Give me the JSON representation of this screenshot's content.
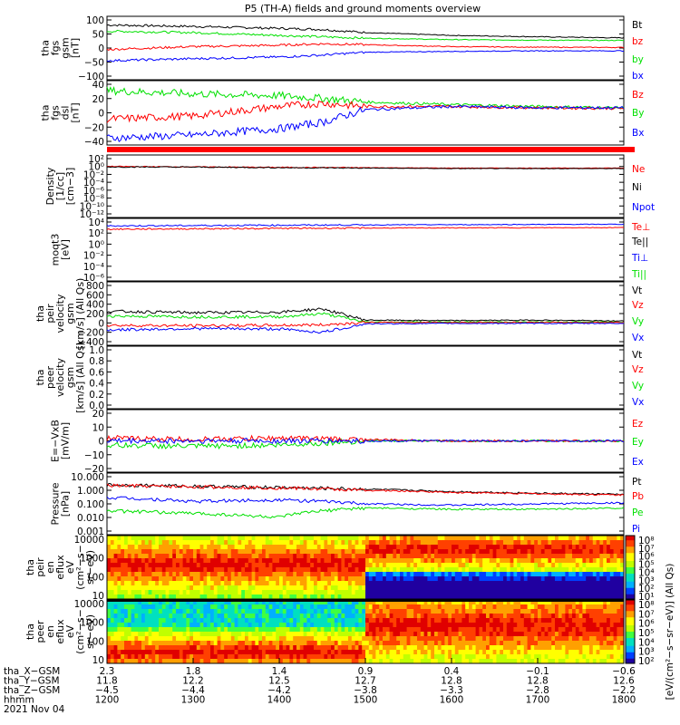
{
  "title": "P5 (TH-A) fields and ground moments overview",
  "colors": {
    "black": "#000000",
    "red": "#ff0000",
    "green": "#00e000",
    "blue": "#0000ff"
  },
  "chart_data": [
    {
      "type": "line",
      "panel": "fgs_gsm",
      "ylabel": [
        "tha",
        "fgs",
        "gsm",
        "[nT]"
      ],
      "yticks": [
        "100",
        "50",
        "0",
        "−50",
        "−100"
      ],
      "ylim": [
        -100,
        100
      ],
      "legend": [
        {
          "name": "Bt",
          "color": "black"
        },
        {
          "name": "bz",
          "color": "red"
        },
        {
          "name": "by",
          "color": "green"
        },
        {
          "name": "bx",
          "color": "blue"
        }
      ],
      "series": [
        {
          "name": "Bt",
          "color": "black",
          "x": [
            1200,
            1300,
            1400,
            1450,
            1500,
            1600,
            1700,
            1800
          ],
          "y": [
            82,
            77,
            70,
            66,
            55,
            45,
            40,
            36
          ]
        },
        {
          "name": "by",
          "color": "green",
          "x": [
            1200,
            1300,
            1400,
            1450,
            1500,
            1600,
            1700,
            1800
          ],
          "y": [
            60,
            55,
            45,
            40,
            35,
            30,
            28,
            27
          ]
        },
        {
          "name": "bz",
          "color": "red",
          "x": [
            1200,
            1300,
            1400,
            1450,
            1500,
            1600,
            1700,
            1800
          ],
          "y": [
            -5,
            5,
            10,
            15,
            12,
            5,
            3,
            2
          ]
        },
        {
          "name": "bx",
          "color": "blue",
          "x": [
            1200,
            1300,
            1400,
            1450,
            1500,
            1600,
            1700,
            1800
          ],
          "y": [
            -45,
            -38,
            -32,
            -25,
            -15,
            -12,
            -10,
            -10
          ]
        }
      ]
    },
    {
      "type": "line",
      "panel": "fgs_dsl",
      "ylabel": [
        "tha",
        "fgs",
        "dsl",
        "[nT]"
      ],
      "yticks": [
        "40",
        "20",
        "0",
        "−20",
        "−40"
      ],
      "ylim": [
        -50,
        40
      ],
      "legend": [
        {
          "name": "Bz",
          "color": "red"
        },
        {
          "name": "By",
          "color": "green"
        },
        {
          "name": "Bx",
          "color": "blue"
        }
      ],
      "series": [
        {
          "name": "By",
          "color": "green",
          "x": [
            1200,
            1300,
            1400,
            1450,
            1500,
            1600,
            1700,
            1800
          ],
          "y": [
            30,
            25,
            22,
            18,
            12,
            8,
            5,
            3
          ]
        },
        {
          "name": "Bz",
          "color": "red",
          "x": [
            1200,
            1300,
            1400,
            1450,
            1500,
            1600,
            1700,
            1800
          ],
          "y": [
            -15,
            -10,
            5,
            10,
            5,
            5,
            3,
            2
          ]
        },
        {
          "name": "Bx",
          "color": "blue",
          "x": [
            1200,
            1300,
            1400,
            1450,
            1500,
            1600,
            1700,
            1800
          ],
          "y": [
            -45,
            -40,
            -30,
            -20,
            0,
            5,
            3,
            3
          ]
        }
      ]
    },
    {
      "type": "line",
      "panel": "density",
      "yscale": "log",
      "ylabel": [
        "Density",
        "[1/cc]",
        "[cm−3]"
      ],
      "yticks": [
        "10²",
        "10⁰",
        "10⁻²",
        "10⁻⁴",
        "10⁻⁶",
        "10⁻⁸",
        "10⁻¹⁰",
        "10⁻¹²"
      ],
      "legend": [
        {
          "name": "Ne",
          "color": "red"
        },
        {
          "name": "Ni",
          "color": "black"
        },
        {
          "name": "Npot",
          "color": "blue"
        }
      ],
      "series": [
        {
          "name": "Ne",
          "color": "red",
          "x": [
            1200,
            1300,
            1400,
            1500,
            1600,
            1700,
            1800
          ],
          "y": [
            1,
            0.8,
            0.6,
            0.5,
            0.4,
            0.4,
            0.4
          ]
        },
        {
          "name": "Ni",
          "color": "black",
          "x": [
            1200,
            1300,
            1400,
            1500,
            1600,
            1700,
            1800
          ],
          "y": [
            0.8,
            0.7,
            0.5,
            0.4,
            0.3,
            0.3,
            0.3
          ]
        }
      ]
    },
    {
      "type": "line",
      "panel": "temperature",
      "yscale": "log",
      "ylabel": [
        "moqt3",
        "[eV]"
      ],
      "yticks": [
        "10⁴",
        "10²",
        "10⁰",
        "10⁻²",
        "10⁻⁴",
        "10⁻⁶"
      ],
      "legend": [
        {
          "name": "Te⊥",
          "color": "red"
        },
        {
          "name": "Te||",
          "color": "black"
        },
        {
          "name": "Ti⊥",
          "color": "blue"
        },
        {
          "name": "Ti||",
          "color": "green"
        }
      ],
      "series": [
        {
          "name": "Ti⊥",
          "color": "blue",
          "x": [
            1200,
            1500,
            1800
          ],
          "y": [
            2000,
            3000,
            4000
          ]
        },
        {
          "name": "Te⊥",
          "color": "red",
          "x": [
            1200,
            1500,
            1800
          ],
          "y": [
            500,
            800,
            1000
          ]
        }
      ]
    },
    {
      "type": "line",
      "panel": "velocity_gsm",
      "ylabel": [
        "tha",
        "peir",
        "velocity",
        "gsm",
        "[km/s] (All Qs)"
      ],
      "yticks": [
        "800",
        "600",
        "400",
        "200",
        "0",
        "−200",
        "−400"
      ],
      "ylim": [
        -400,
        800
      ],
      "legend": [
        {
          "name": "Vt",
          "color": "black"
        },
        {
          "name": "Vz",
          "color": "red"
        },
        {
          "name": "Vy",
          "color": "green"
        },
        {
          "name": "Vx",
          "color": "blue"
        }
      ],
      "series": [
        {
          "name": "Vt",
          "color": "black",
          "x": [
            1200,
            1300,
            1400,
            1450,
            1500,
            1600,
            1700,
            1800
          ],
          "y": [
            250,
            220,
            230,
            300,
            60,
            50,
            60,
            40
          ]
        },
        {
          "name": "Vy",
          "color": "green",
          "x": [
            1200,
            1300,
            1400,
            1450,
            1500,
            1600,
            1700,
            1800
          ],
          "y": [
            150,
            130,
            130,
            200,
            20,
            20,
            20,
            20
          ]
        },
        {
          "name": "Vz",
          "color": "red",
          "x": [
            1200,
            1300,
            1400,
            1450,
            1500,
            1600,
            1700,
            1800
          ],
          "y": [
            -50,
            -60,
            -50,
            -40,
            10,
            10,
            10,
            10
          ]
        },
        {
          "name": "Vx",
          "color": "blue",
          "x": [
            1200,
            1300,
            1400,
            1450,
            1500,
            1600,
            1700,
            1800
          ],
          "y": [
            -150,
            -120,
            -130,
            -200,
            -20,
            -10,
            -10,
            -10
          ]
        }
      ]
    },
    {
      "type": "line",
      "panel": "velocity_empty",
      "ylabel": [
        "tha",
        "peer",
        "velocity",
        "gsm",
        "[km/s] (All Qs)"
      ],
      "yticks": [
        "1.0",
        "0.8",
        "0.6",
        "0.4",
        "0.2",
        "0.0"
      ],
      "ylim": [
        0,
        1
      ],
      "legend": [
        {
          "name": "Vt",
          "color": "black"
        },
        {
          "name": "Vz",
          "color": "red"
        },
        {
          "name": "Vy",
          "color": "green"
        },
        {
          "name": "Vx",
          "color": "blue"
        }
      ],
      "series": []
    },
    {
      "type": "line",
      "panel": "efield",
      "ylabel": [
        "E=−VxB",
        "[mV/m]"
      ],
      "yticks": [
        "20",
        "10",
        "0",
        "−10",
        "−20"
      ],
      "ylim": [
        -20,
        20
      ],
      "legend": [
        {
          "name": "Ez",
          "color": "red"
        },
        {
          "name": "Ey",
          "color": "green"
        },
        {
          "name": "Ex",
          "color": "blue"
        }
      ],
      "series": [
        {
          "name": "Ey",
          "color": "green",
          "x": [
            1200,
            1300,
            1400,
            1500,
            1600,
            1700,
            1800
          ],
          "y": [
            -3,
            -4,
            -3,
            0,
            0,
            0,
            0
          ]
        },
        {
          "name": "Ez",
          "color": "red",
          "x": [
            1200,
            1300,
            1400,
            1500,
            1600,
            1700,
            1800
          ],
          "y": [
            2,
            1,
            2,
            1,
            0,
            0,
            0
          ]
        },
        {
          "name": "Ex",
          "color": "blue",
          "x": [
            1200,
            1300,
            1400,
            1500,
            1600,
            1700,
            1800
          ],
          "y": [
            0,
            0,
            0,
            0,
            0,
            0,
            0
          ]
        }
      ]
    },
    {
      "type": "line",
      "panel": "pressure",
      "yscale": "log",
      "ylabel": [
        "Pressure",
        "[nPa]"
      ],
      "yticks": [
        "10.000",
        "1.000",
        "0.100",
        "0.010",
        "0.001"
      ],
      "ylim": [
        0.001,
        10
      ],
      "legend": [
        {
          "name": "Pt",
          "color": "black"
        },
        {
          "name": "Pb",
          "color": "red"
        },
        {
          "name": "Pe",
          "color": "green"
        },
        {
          "name": "Pi",
          "color": "blue"
        }
      ],
      "series": [
        {
          "name": "Pt",
          "color": "black",
          "x": [
            1200,
            1300,
            1400,
            1500,
            1600,
            1700,
            1800
          ],
          "y": [
            2.5,
            2.0,
            1.6,
            1.2,
            0.8,
            0.6,
            0.5
          ]
        },
        {
          "name": "Pb",
          "color": "red",
          "x": [
            1200,
            1300,
            1400,
            1500,
            1600,
            1700,
            1800
          ],
          "y": [
            2.2,
            1.8,
            1.5,
            1.0,
            0.7,
            0.55,
            0.45
          ]
        },
        {
          "name": "Pi",
          "color": "blue",
          "x": [
            1200,
            1300,
            1400,
            1500,
            1600,
            1700,
            1800
          ],
          "y": [
            0.3,
            0.15,
            0.2,
            0.1,
            0.08,
            0.1,
            0.12
          ]
        },
        {
          "name": "Pe",
          "color": "green",
          "x": [
            1200,
            1300,
            1400,
            1500,
            1600,
            1700,
            1800
          ],
          "y": [
            0.03,
            0.02,
            0.01,
            0.05,
            0.04,
            0.04,
            0.05
          ]
        }
      ]
    },
    {
      "type": "heatmap",
      "panel": "peir_spectrogram",
      "ylabel": [
        "tha",
        "peir",
        "en",
        "eflux",
        "eV",
        "(cm²−s−",
        "sr−eV)"
      ],
      "yticks": [
        "10000",
        "1000",
        "100",
        "10"
      ],
      "colorbar_ticks": [
        "10⁸",
        "10⁷",
        "10⁶",
        "10⁵",
        "10⁴",
        "10³",
        "10²",
        "10¹"
      ]
    },
    {
      "type": "heatmap",
      "panel": "peer_spectrogram",
      "ylabel": [
        "tha",
        "peer",
        "en",
        "eflux",
        "eV",
        "(cm²−s−",
        "sr−eV)"
      ],
      "yticks": [
        "10000",
        "1000",
        "100",
        "10"
      ],
      "colorbar_ticks": [
        "10⁸",
        "10⁷",
        "10⁶",
        "10⁵",
        "10⁴",
        "10³",
        "10²"
      ],
      "colorbar_label": "[eV/(cm²−s−sr−eV)] (All Qs)"
    }
  ],
  "xaxis": {
    "row_labels": [
      "tha_X−GSM",
      "tha_Y−GSM",
      "tha_Z−GSM",
      "hhmm",
      "2021 Nov 04"
    ],
    "columns": [
      {
        "x": "2.3",
        "y": "11.8",
        "z": "−4.5",
        "t": "1200"
      },
      {
        "x": "1.8",
        "y": "12.2",
        "z": "−4.4",
        "t": "1300"
      },
      {
        "x": "1.4",
        "y": "12.5",
        "z": "−4.2",
        "t": "1400"
      },
      {
        "x": "0.9",
        "y": "12.7",
        "z": "−3.8",
        "t": "1500"
      },
      {
        "x": "0.4",
        "y": "12.8",
        "z": "−3.3",
        "t": "1600"
      },
      {
        "x": "−0.1",
        "y": "12.8",
        "z": "−2.8",
        "t": "1700"
      },
      {
        "x": "−0.6",
        "y": "12.6",
        "z": "−2.2",
        "t": "1800"
      }
    ]
  }
}
